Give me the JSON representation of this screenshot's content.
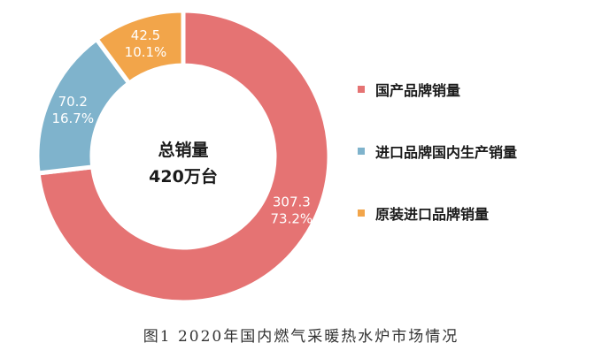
{
  "chart_data": {
    "type": "pie",
    "variant": "donut",
    "caption": "图1 2020年国内燃气采暖热水炉市场情况",
    "center_label": {
      "line1": "总销量",
      "line2": "420万台"
    },
    "legend_position": "right",
    "series": [
      {
        "name": "国产品牌销量",
        "value": 307.3,
        "percent_label": "73.2%",
        "value_label": "307.3",
        "color": "#E57373"
      },
      {
        "name": "进口品牌国内生产销量",
        "value": 70.2,
        "percent_label": "16.7%",
        "value_label": "70.2",
        "color": "#7FB3CC"
      },
      {
        "name": "原装进口品牌销量",
        "value": 42.5,
        "percent_label": "10.1%",
        "value_label": "42.5",
        "color": "#F2A54A"
      }
    ]
  }
}
